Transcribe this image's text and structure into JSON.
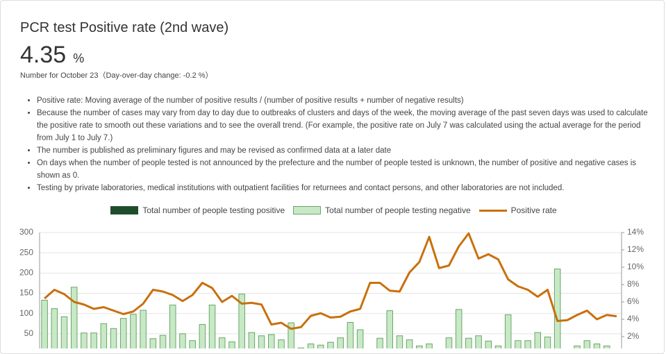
{
  "header": {
    "title": "PCR test Positive rate (2nd wave)",
    "value": "4.35",
    "unit": "%",
    "note": "Number for October 23（Day-over-day change: -0.2 %）"
  },
  "notes": [
    "Positive rate: Moving average of the number of positive results / (number of positive results + number of negative results)",
    "Because the number of cases may vary from day to day due to outbreaks of clusters and days of the week, the moving average of the past seven days was used to calculate the positive rate to smooth out these variations and to see the overall trend. (For example, the positive rate on July 7 was calculated using the actual average for the period from July 1 to July 7.)",
    "The number is published as preliminary figures and may be revised as confirmed data at a later date",
    "On days when the number of people tested is not announced by the prefecture and the number of people tested is unknown, the number of positive and negative cases is shown as 0.",
    "Testing by private laboratories, medical institutions with outpatient facilities for returnees and contact persons, and other laboratories are not included."
  ],
  "chart_data": {
    "type": "bar",
    "categories": [
      null,
      null,
      null,
      null,
      null,
      null,
      null,
      null,
      null,
      null,
      null,
      null,
      null,
      null,
      null,
      null,
      null,
      null,
      null,
      null,
      null,
      null,
      null,
      null,
      null,
      null,
      null,
      null,
      null,
      null,
      null,
      null,
      null,
      null,
      null,
      null,
      null,
      null,
      null,
      null,
      null,
      null,
      null,
      null,
      null,
      null,
      null,
      null,
      null,
      null,
      null,
      null,
      null,
      null,
      null,
      null,
      null,
      null,
      null
    ],
    "series": [
      {
        "name": "Total number of people testing positive",
        "type": "bar",
        "color": "#1e4d2b",
        "values": [
          null,
          null,
          null,
          null,
          null,
          null,
          null,
          null,
          null,
          null,
          null,
          null,
          null,
          null,
          null,
          null,
          null,
          null,
          null,
          null,
          null,
          null,
          null,
          null,
          null,
          null,
          null,
          null,
          null,
          null,
          null,
          null,
          null,
          null,
          null,
          null,
          null,
          null,
          null,
          null,
          null,
          null,
          null,
          null,
          null,
          null,
          null,
          null,
          null,
          null,
          null,
          null,
          null,
          null,
          null,
          null,
          null,
          null,
          null
        ]
      },
      {
        "name": "Total number of people testing negative",
        "type": "bar",
        "color": "#c8e9c5",
        "values": [
          133,
          112,
          92,
          165,
          52,
          52,
          75,
          63,
          88,
          98,
          108,
          38,
          46,
          121,
          50,
          33,
          73,
          121,
          40,
          30,
          148,
          53,
          45,
          48,
          35,
          77,
          15,
          25,
          22,
          29,
          40,
          78,
          60,
          10,
          39,
          107,
          45,
          35,
          20,
          25,
          10,
          40,
          110,
          39,
          45,
          32,
          20,
          97,
          33,
          33,
          53,
          42,
          210,
          10,
          20,
          33,
          25,
          20,
          10
        ]
      },
      {
        "name": "Positive rate",
        "type": "line",
        "axis": "y2",
        "color": "#c8700c",
        "values": [
          6.4,
          7.4,
          6.9,
          6.0,
          5.7,
          5.2,
          5.4,
          5.0,
          4.6,
          4.9,
          5.8,
          7.4,
          7.2,
          6.8,
          6.1,
          6.8,
          8.2,
          7.6,
          6.0,
          6.7,
          5.8,
          5.9,
          5.7,
          3.4,
          3.6,
          2.9,
          3.1,
          4.4,
          4.7,
          4.2,
          4.3,
          4.9,
          5.2,
          8.2,
          8.2,
          7.3,
          7.2,
          9.4,
          10.6,
          13.5,
          9.9,
          10.2,
          12.4,
          13.9,
          11.0,
          11.5,
          10.9,
          8.6,
          7.8,
          7.4,
          6.6,
          7.4,
          3.8,
          3.9,
          4.5,
          5.0,
          4.0,
          4.5,
          4.35
        ]
      }
    ],
    "ylim": [
      0,
      300
    ],
    "yticks": [
      50,
      100,
      150,
      200,
      250,
      300
    ],
    "y2lim": [
      0,
      14
    ],
    "y2ticks": [
      {
        "value": 2,
        "label": "2%"
      },
      {
        "value": 4,
        "label": "4%"
      },
      {
        "value": 6,
        "label": "6%"
      },
      {
        "value": 8,
        "label": "8%"
      },
      {
        "value": 10,
        "label": "10%"
      },
      {
        "value": 12,
        "label": "12%"
      },
      {
        "value": 14,
        "label": "14%"
      }
    ],
    "grid": true,
    "legend": "top"
  }
}
